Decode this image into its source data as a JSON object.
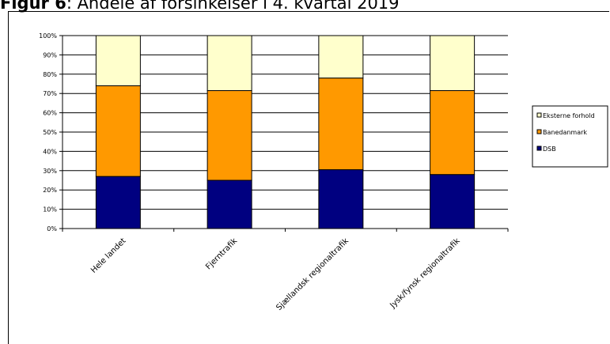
{
  "figure": {
    "prefix": "Figur 6",
    "rest": ": Andele af forsinkelser i 4. kvartal 2019"
  },
  "chart_data": {
    "type": "bar",
    "stacked": true,
    "percent": true,
    "title": "",
    "xlabel": "",
    "ylabel": "",
    "ylim": [
      0,
      100
    ],
    "yticks": [
      "0%",
      "10%",
      "20%",
      "30%",
      "40%",
      "50%",
      "60%",
      "70%",
      "80%",
      "90%",
      "100%"
    ],
    "grid": true,
    "legend_position": "right",
    "categories": [
      "Hele landet",
      "Fjerntrafik",
      "Sjællandsk regionaltrafik",
      "Jysk/fynsk regionaltrafik"
    ],
    "series": [
      {
        "name": "DSB",
        "values": [
          27,
          25,
          30.5,
          28
        ],
        "color": "#000080"
      },
      {
        "name": "Banedanmark",
        "values": [
          47,
          46.5,
          47.5,
          43.5
        ],
        "color": "#FF9900"
      },
      {
        "name": "Eksterne forhold",
        "values": [
          26,
          28.5,
          22,
          28.5
        ],
        "color": "#FFFFCC"
      }
    ],
    "legend_order": [
      "Eksterne forhold",
      "Banedanmark",
      "DSB"
    ]
  }
}
